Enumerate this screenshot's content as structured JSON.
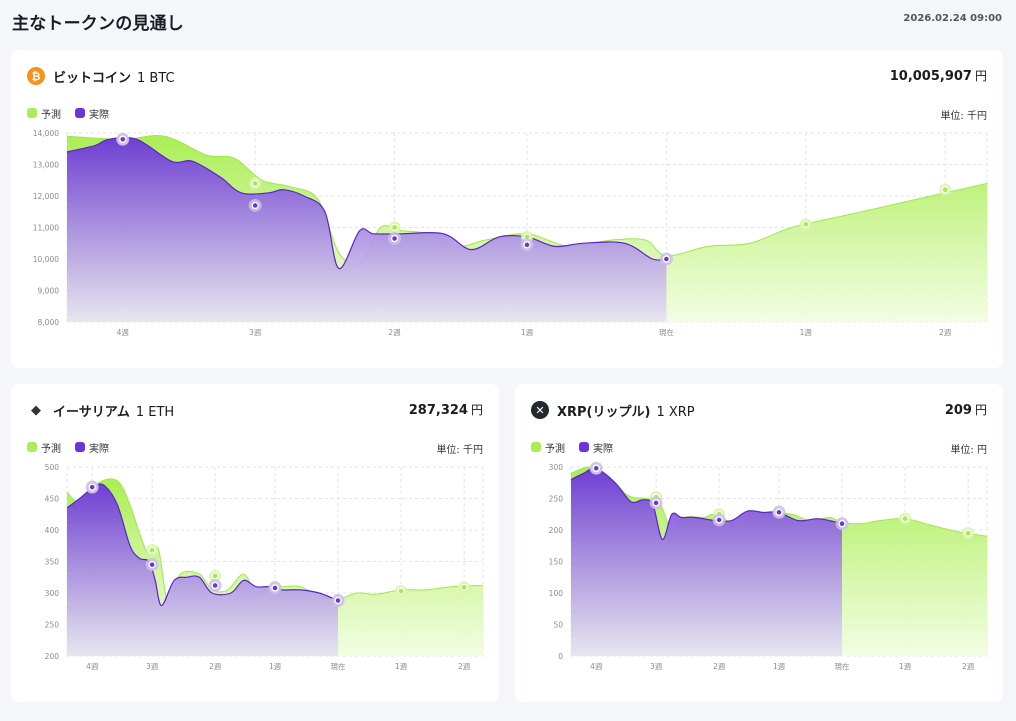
{
  "header": {
    "title": "主なトークンの見通し",
    "datetime": "2026.02.24 09:00"
  },
  "legend": {
    "forecast": "予測",
    "actual": "実際"
  },
  "colors": {
    "forecast": "#aaee55",
    "actual": "#6b35d9",
    "btc": "#f7931a",
    "eth": "#ffffff",
    "xrp": "#23292f"
  },
  "cards": {
    "btc": {
      "icon": "bitcoin-icon",
      "icon_glyph": "₿",
      "name": "ビットコイン",
      "unit": "1 BTC",
      "price": "10,005,907",
      "currency": "円",
      "units_label": "単位: 千円",
      "chart_data": {
        "type": "area",
        "title": "ビットコイン 1 BTC",
        "ylim": [
          8000,
          14000
        ],
        "yticks": [
          "14,000",
          "13,000",
          "12,000",
          "11,000",
          "10,000",
          "9,000",
          "8,000"
        ],
        "xlabels": [
          "4週",
          "3週",
          "2週",
          "1週",
          "現在",
          "1週",
          "2週"
        ],
        "series": [
          {
            "name": "予測",
            "x": [
              -4.3,
              -3.9,
              -3.6,
              -3.3,
              -3.1,
              -2.9,
              -2.7,
              -2.5,
              -2.35,
              -2.2,
              -2.05,
              -1.9,
              -1.7,
              -1.5,
              -1.3,
              -1.0,
              -0.7,
              -0.4,
              -0.15,
              0,
              0.3,
              0.6,
              0.9,
              1.3,
              1.7,
              2.0,
              2.3
            ],
            "y": [
              13900,
              13800,
              13900,
              13300,
              13200,
              12500,
              12300,
              11900,
              10200,
              9850,
              11000,
              10900,
              10800,
              10400,
              10600,
              10800,
              10400,
              10600,
              10600,
              10100,
              10400,
              10500,
              11000,
              11400,
              11800,
              12100,
              12400
            ]
          },
          {
            "name": "実際",
            "x": [
              -4.3,
              -4.1,
              -4.0,
              -3.8,
              -3.55,
              -3.4,
              -3.2,
              -3.05,
              -2.85,
              -2.75,
              -2.6,
              -2.45,
              -2.35,
              -2.2,
              -2.1,
              -1.9,
              -1.6,
              -1.4,
              -1.2,
              -1.0,
              -0.8,
              -0.6,
              -0.3,
              -0.1,
              0
            ],
            "y": [
              13400,
              13600,
              13800,
              13800,
              13100,
              13100,
              12600,
              12100,
              12100,
              12200,
              12000,
              11500,
              9700,
              10900,
              10800,
              10800,
              10800,
              10300,
              10700,
              10700,
              10400,
              10500,
              10500,
              10000,
              10000
            ]
          }
        ],
        "forecast_markers": [
          {
            "x": -3.9,
            "y": 13800
          },
          {
            "x": -2.95,
            "y": 12400
          },
          {
            "x": -1.95,
            "y": 11000
          },
          {
            "x": -1.0,
            "y": 10700
          },
          {
            "x": 1.0,
            "y": 11100
          },
          {
            "x": 2.0,
            "y": 12200
          }
        ],
        "actual_markers": [
          {
            "x": -3.9,
            "y": 13800
          },
          {
            "x": -2.95,
            "y": 11700
          },
          {
            "x": -1.95,
            "y": 10650
          },
          {
            "x": -1.0,
            "y": 10450
          },
          {
            "x": 0,
            "y": 10000
          }
        ]
      }
    },
    "eth": {
      "icon": "ethereum-icon",
      "icon_glyph": "◆",
      "name": "イーサリアム",
      "unit": "1 ETH",
      "price": "287,324",
      "currency": "円",
      "units_label": "単位: 千円",
      "chart_data": {
        "type": "area",
        "title": "イーサリアム 1 ETH",
        "ylim": [
          200,
          500
        ],
        "yticks": [
          "500",
          "450",
          "400",
          "350",
          "300",
          "250",
          "200"
        ],
        "xlabels": [
          "4週",
          "3週",
          "2週",
          "1週",
          "現在",
          "1週",
          "2週"
        ],
        "series": [
          {
            "name": "予測",
            "x": [
              -4.3,
              -4.1,
              -3.8,
              -3.5,
              -3.3,
              -3.15,
              -3.0,
              -2.85,
              -2.7,
              -2.5,
              -2.2,
              -2.0,
              -1.75,
              -1.5,
              -1.3,
              -1.1,
              -0.9,
              -0.6,
              -0.3,
              0,
              0.3,
              0.6,
              1.0,
              1.4,
              1.8,
              2.3
            ],
            "y": [
              460,
              445,
              475,
              478,
              440,
              395,
              360,
              370,
              285,
              330,
              330,
              305,
              305,
              330,
              300,
              310,
              310,
              310,
              295,
              290,
              300,
              298,
              305,
              305,
              310,
              312
            ]
          },
          {
            "name": "実際",
            "x": [
              -4.3,
              -4.1,
              -3.85,
              -3.7,
              -3.5,
              -3.3,
              -3.15,
              -3.0,
              -2.9,
              -2.8,
              -2.6,
              -2.4,
              -2.2,
              -2.0,
              -1.7,
              -1.5,
              -1.3,
              -1.1,
              -0.9,
              -0.6,
              -0.3,
              0
            ],
            "y": [
              435,
              450,
              470,
              470,
              440,
              375,
              355,
              350,
              320,
              280,
              320,
              325,
              325,
              300,
              300,
              320,
              310,
              310,
              305,
              305,
              300,
              288
            ]
          }
        ],
        "forecast_markers": [
          {
            "x": -3.9,
            "y": 468
          },
          {
            "x": -2.95,
            "y": 368
          },
          {
            "x": -1.95,
            "y": 327
          },
          {
            "x": -1.0,
            "y": 310
          },
          {
            "x": 1.0,
            "y": 303
          },
          {
            "x": 2.0,
            "y": 309
          }
        ],
        "actual_markers": [
          {
            "x": -3.9,
            "y": 468
          },
          {
            "x": -2.95,
            "y": 345
          },
          {
            "x": -1.95,
            "y": 312
          },
          {
            "x": -1.0,
            "y": 308
          },
          {
            "x": 0,
            "y": 288
          }
        ]
      }
    },
    "xrp": {
      "icon": "xrp-icon",
      "icon_glyph": "✕",
      "name": "XRP(リップル)",
      "unit": "1 XRP",
      "price": "209",
      "currency": "円",
      "units_label": "単位: 円",
      "chart_data": {
        "type": "area",
        "title": "XRP(リップル) 1 XRP",
        "ylim": [
          0,
          300
        ],
        "yticks": [
          "300",
          "250",
          "200",
          "150",
          "100",
          "50",
          "0"
        ],
        "xlabels": [
          "4週",
          "3週",
          "2週",
          "1週",
          "現在",
          "1週",
          "2週"
        ],
        "series": [
          {
            "name": "予測",
            "x": [
              -4.3,
              -4.0,
              -3.7,
              -3.4,
              -3.1,
              -2.9,
              -2.7,
              -2.5,
              -2.2,
              -2.0,
              -1.7,
              -1.4,
              -1.1,
              -0.8,
              -0.5,
              -0.2,
              0,
              0.3,
              0.6,
              1.0,
              1.4,
              1.8,
              2.3
            ],
            "y": [
              290,
              300,
              285,
              255,
              250,
              245,
              200,
              220,
              220,
              225,
              210,
              225,
              228,
              225,
              215,
              220,
              212,
              210,
              215,
              218,
              208,
              198,
              190
            ]
          },
          {
            "name": "実際",
            "x": [
              -4.3,
              -4.1,
              -3.9,
              -3.6,
              -3.35,
              -3.15,
              -3.0,
              -2.85,
              -2.7,
              -2.55,
              -2.35,
              -2.0,
              -1.75,
              -1.5,
              -1.25,
              -1.0,
              -0.7,
              -0.4,
              -0.2,
              0
            ],
            "y": [
              280,
              290,
              298,
              275,
              245,
              248,
              240,
              185,
              225,
              220,
              220,
              215,
              215,
              230,
              228,
              228,
              215,
              218,
              215,
              210
            ]
          }
        ],
        "forecast_markers": [
          {
            "x": -3.9,
            "y": 298
          },
          {
            "x": -2.95,
            "y": 252
          },
          {
            "x": -1.95,
            "y": 225
          },
          {
            "x": -1.0,
            "y": 230
          },
          {
            "x": 1.0,
            "y": 218
          },
          {
            "x": 2.0,
            "y": 195
          }
        ],
        "actual_markers": [
          {
            "x": -3.9,
            "y": 298
          },
          {
            "x": -2.95,
            "y": 243
          },
          {
            "x": -1.95,
            "y": 216
          },
          {
            "x": -1.0,
            "y": 228
          },
          {
            "x": 0,
            "y": 210
          }
        ]
      }
    }
  }
}
